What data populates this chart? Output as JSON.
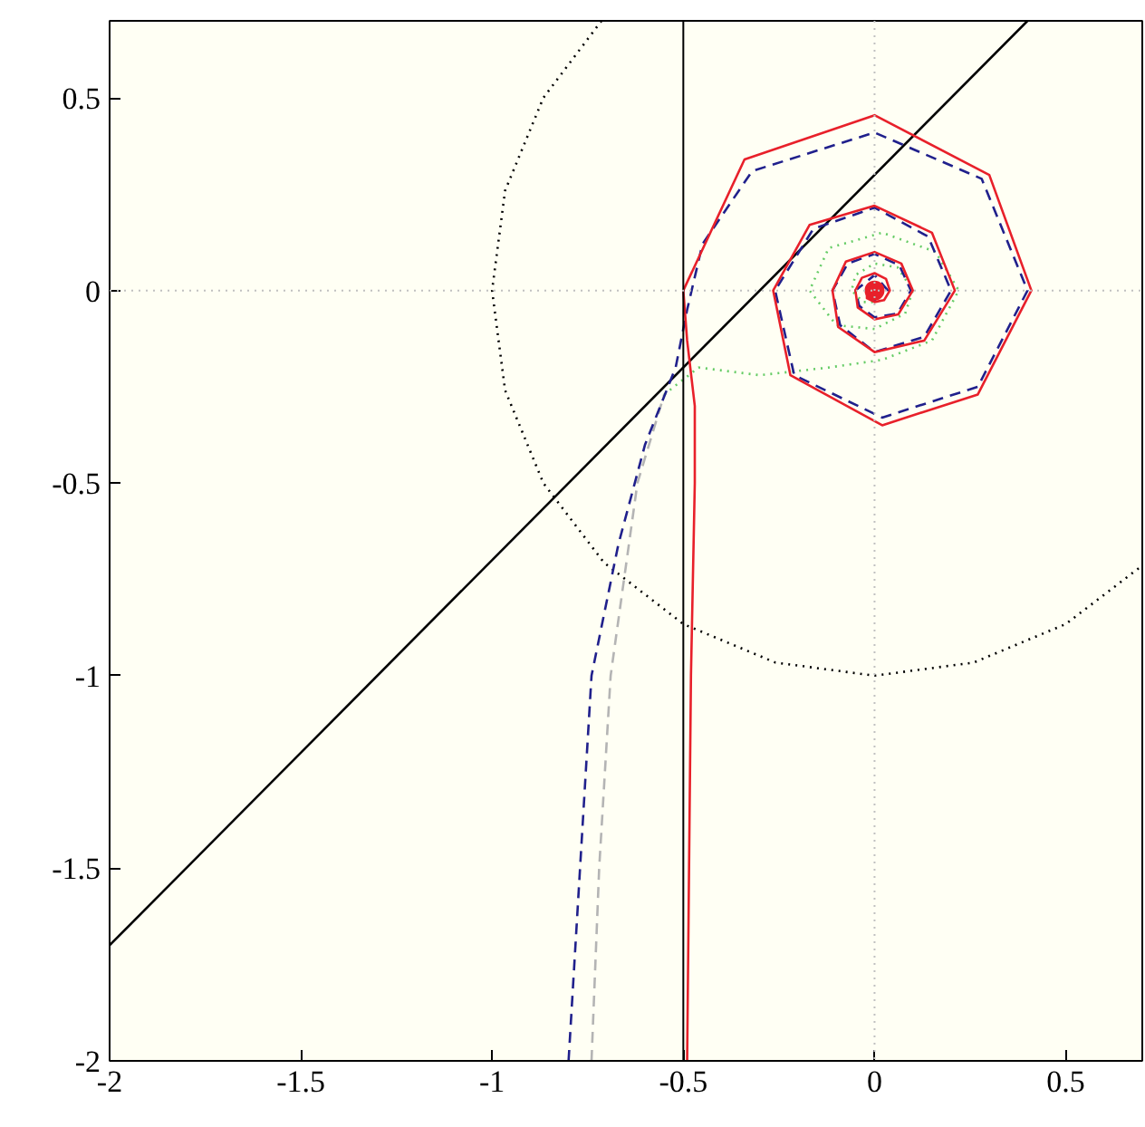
{
  "chart_data": {
    "type": "line",
    "xlim": [
      -2,
      0.7
    ],
    "ylim": [
      -2,
      0.7
    ],
    "xticks": [
      -2,
      -1.5,
      -1,
      -0.5,
      0,
      0.5
    ],
    "yticks": [
      -2,
      -1.5,
      -1,
      -0.5,
      0,
      0.5
    ],
    "ref_lines": [
      {
        "axis": "x",
        "value": -0.5,
        "color": "#000000",
        "line_style": "solid"
      },
      {
        "axis": "x",
        "value": 0,
        "color": "#c0c0c0",
        "line_style": "dotted"
      },
      {
        "axis": "y",
        "value": 0,
        "color": "#c0c0c0",
        "line_style": "dotted"
      }
    ],
    "series": [
      {
        "color": "#000000",
        "line_style": "dotted",
        "x": [
          -0.714,
          -0.866,
          -0.966,
          -1,
          -0.966,
          -0.866,
          -0.707,
          -0.5,
          -0.259,
          0,
          0.259,
          0.5,
          0.7
        ],
        "values": [
          0.7,
          0.5,
          0.259,
          0,
          -0.259,
          -0.5,
          -0.707,
          -0.866,
          -0.966,
          -1,
          -0.966,
          -0.866,
          -0.714
        ]
      },
      {
        "color": "#000000",
        "line_style": "solid",
        "x": [
          -2,
          0.4
        ],
        "values": [
          -1.7,
          0.7
        ]
      },
      {
        "color": "#b4b4b4",
        "line_style": "dashed",
        "x": [
          -0.74,
          -0.72,
          -0.69,
          -0.62,
          -0.55
        ],
        "values": [
          -2,
          -1.5,
          -1,
          -0.5,
          -0.27
        ]
      },
      {
        "color": "#66cc66",
        "line_style": "dotted",
        "x": [
          -0.55,
          -0.46,
          -0.3,
          -0.12,
          0.02,
          0.15,
          0.22,
          0.16,
          0.02,
          -0.12,
          -0.17,
          -0.1,
          0,
          0.08,
          0.1,
          0.06,
          0,
          -0.05,
          -0.06,
          -0.03,
          0,
          0.02,
          0
        ],
        "values": [
          -0.27,
          -0.2,
          -0.22,
          -0.2,
          -0.18,
          -0.13,
          0,
          0.1,
          0.15,
          0.11,
          0,
          -0.09,
          -0.1,
          -0.06,
          0,
          0.06,
          0.07,
          0.04,
          0,
          -0.03,
          -0.03,
          0,
          0
        ]
      },
      {
        "color": "#20208c",
        "line_style": "dashed",
        "x": [
          -0.8,
          -0.77,
          -0.74,
          -0.67,
          -0.6,
          -0.52,
          -0.49,
          -0.45,
          -0.32,
          0,
          0.28,
          0.4,
          0.27,
          0.02,
          -0.21,
          -0.26,
          -0.16,
          0,
          0.14,
          0.2,
          0.13,
          0,
          -0.09,
          -0.11,
          -0.07,
          0,
          0.065,
          0.095,
          0.06,
          0,
          -0.04,
          -0.05,
          0,
          0.035,
          0,
          0
        ],
        "values": [
          -2,
          -1.5,
          -1,
          -0.66,
          -0.4,
          -0.2,
          -0.05,
          0.12,
          0.31,
          0.41,
          0.29,
          0,
          -0.25,
          -0.33,
          -0.22,
          0,
          0.16,
          0.215,
          0.14,
          0,
          -0.12,
          -0.16,
          -0.09,
          0,
          0.07,
          0.095,
          0.065,
          0,
          -0.06,
          -0.07,
          -0.04,
          0,
          0.04,
          0,
          -0.025,
          0
        ]
      },
      {
        "color": "#e8202a",
        "line_style": "solid",
        "x": [
          -0.49,
          -0.48,
          -0.47,
          -0.47,
          -0.49,
          -0.5,
          -0.34,
          0,
          0.3,
          0.41,
          0.27,
          0.02,
          -0.22,
          -0.265,
          -0.17,
          0,
          0.15,
          0.21,
          0.13,
          0,
          -0.095,
          -0.11,
          -0.075,
          0,
          0.07,
          0.1,
          0.062,
          0,
          -0.044,
          -0.05,
          -0.033,
          0,
          0.03,
          0.04,
          0.025,
          0,
          -0.02,
          -0.02,
          0,
          0
        ],
        "values": [
          -2,
          -1,
          -0.5,
          -0.3,
          -0.13,
          0,
          0.34,
          0.455,
          0.3,
          0,
          -0.27,
          -0.35,
          -0.22,
          0,
          0.17,
          0.22,
          0.15,
          0,
          -0.13,
          -0.16,
          -0.095,
          0,
          0.075,
          0.1,
          0.07,
          0,
          -0.062,
          -0.075,
          -0.044,
          0,
          0.033,
          0.045,
          0.03,
          0,
          -0.025,
          -0.03,
          -0.02,
          0,
          0.015,
          0
        ]
      },
      {
        "type": "scatter",
        "color": "#e8202a",
        "marker": "circle",
        "x": [
          0
        ],
        "values": [
          0
        ]
      }
    ]
  }
}
